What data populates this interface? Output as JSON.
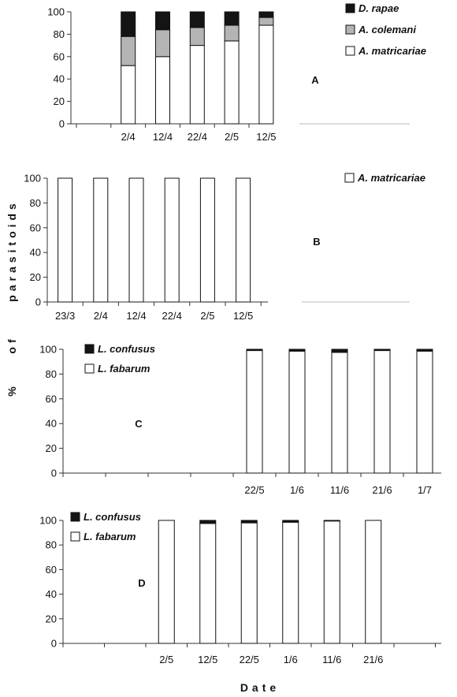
{
  "y_axis_words": [
    "%",
    "of",
    "parasitoids"
  ],
  "x_axis_title": "Date",
  "chart_data": [
    {
      "type": "bar",
      "stacked": true,
      "panel_label": "A",
      "ylim": [
        0,
        100
      ],
      "yticks": [
        0,
        20,
        40,
        60,
        80,
        100
      ],
      "categories": [
        "",
        "2/4",
        "12/4",
        "22/4",
        "2/5",
        "12/5",
        "",
        ""
      ],
      "series": [
        {
          "name": "A. matricariae",
          "color": "#ffffff",
          "values": [
            null,
            52,
            60,
            70,
            74,
            88,
            null,
            null
          ]
        },
        {
          "name": "A. colemani",
          "color": "#b4b4b4",
          "values": [
            null,
            26,
            24,
            16,
            14,
            7,
            null,
            null
          ]
        },
        {
          "name": "D. rapae",
          "color": "#141414",
          "values": [
            null,
            22,
            16,
            14,
            12,
            5,
            null,
            null
          ]
        }
      ],
      "legend": [
        "D. rapae",
        "A. colemani",
        "A. matricariae"
      ],
      "legend_position": "top-right"
    },
    {
      "type": "bar",
      "stacked": true,
      "panel_label": "B",
      "ylim": [
        0,
        100
      ],
      "yticks": [
        0,
        20,
        40,
        60,
        80,
        100
      ],
      "categories": [
        "23/3",
        "2/4",
        "12/4",
        "22/4",
        "2/5",
        "12/5",
        "",
        ""
      ],
      "series": [
        {
          "name": "A. matricariae",
          "color": "#ffffff",
          "values": [
            100,
            100,
            100,
            100,
            100,
            100,
            null,
            null
          ]
        }
      ],
      "legend": [
        "A. matricariae"
      ],
      "legend_position": "top-right"
    },
    {
      "type": "bar",
      "stacked": true,
      "panel_label": "C",
      "ylim": [
        0,
        100
      ],
      "yticks": [
        0,
        20,
        40,
        60,
        80,
        100
      ],
      "categories": [
        "",
        "",
        "",
        "",
        "22/5",
        "1/6",
        "11/6",
        "21/6",
        "1/7"
      ],
      "series": [
        {
          "name": "L. fabarum",
          "color": "#ffffff",
          "values": [
            null,
            null,
            null,
            null,
            99,
            98.5,
            97.5,
            99,
            98.5
          ]
        },
        {
          "name": "L. confusus",
          "color": "#141414",
          "values": [
            null,
            null,
            null,
            null,
            1,
            1.5,
            2.5,
            1,
            1.5
          ]
        }
      ],
      "legend": [
        "L. confusus",
        "L. fabarum"
      ],
      "legend_position": "top-left"
    },
    {
      "type": "bar",
      "stacked": true,
      "panel_label": "D",
      "ylim": [
        0,
        100
      ],
      "yticks": [
        0,
        20,
        40,
        60,
        80,
        100
      ],
      "categories": [
        "",
        "",
        "2/5",
        "12/5",
        "22/5",
        "1/6",
        "11/6",
        "21/6",
        ""
      ],
      "series": [
        {
          "name": "L. fabarum",
          "color": "#ffffff",
          "values": [
            null,
            null,
            100,
            97.5,
            98,
            98.5,
            99.5,
            100,
            null
          ]
        },
        {
          "name": "L. confusus",
          "color": "#141414",
          "values": [
            null,
            null,
            0,
            2.5,
            2,
            1.5,
            0.5,
            0,
            null
          ]
        }
      ],
      "legend": [
        "L. confusus",
        "L. fabarum"
      ],
      "legend_position": "top-left"
    }
  ]
}
